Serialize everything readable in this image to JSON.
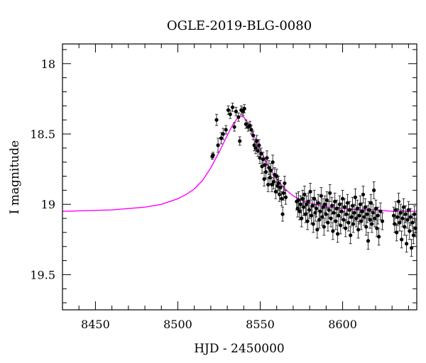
{
  "chart_data": {
    "type": "scatter",
    "title": "OGLE-2019-BLG-0080",
    "xlabel": "HJD - 2450000",
    "ylabel": "I magnitude",
    "xlim": [
      8430,
      8645
    ],
    "ylim": [
      19.75,
      17.86
    ],
    "y_inverted": true,
    "grid": false,
    "x_ticks": [
      8450,
      8500,
      8550,
      8600
    ],
    "x_tick_labels": [
      "8450",
      "8500",
      "8550",
      "8600"
    ],
    "y_ticks": [
      18,
      18.5,
      19,
      19.5
    ],
    "y_tick_labels": [
      "18",
      "18.5",
      "19",
      "19.5"
    ],
    "colors": {
      "data": "#000000",
      "model": "#ff00ff"
    },
    "series": [
      {
        "type": "scatter_errorbars",
        "points": [
          [
            8520.9,
            18.66,
            0.02
          ],
          [
            8521.4,
            18.65,
            0.02
          ],
          [
            8523.5,
            18.4,
            0.04
          ],
          [
            8524.4,
            18.58,
            0.05
          ],
          [
            8526.3,
            18.53,
            0.04
          ],
          [
            8527.5,
            18.5,
            0.04
          ],
          [
            8529.2,
            18.47,
            0.03
          ],
          [
            8530.6,
            18.33,
            0.03
          ],
          [
            8531.8,
            18.36,
            0.03
          ],
          [
            8533.2,
            18.31,
            0.03
          ],
          [
            8534.3,
            18.45,
            0.03
          ],
          [
            8535.3,
            18.34,
            0.03
          ],
          [
            8536.8,
            18.38,
            0.03
          ],
          [
            8537.6,
            18.55,
            0.03
          ],
          [
            8538.5,
            18.33,
            0.03
          ],
          [
            8539.6,
            18.34,
            0.03
          ],
          [
            8540.4,
            18.32,
            0.03
          ],
          [
            8541.3,
            18.43,
            0.03
          ],
          [
            8542.7,
            18.45,
            0.03
          ],
          [
            8543.8,
            18.44,
            0.03
          ],
          [
            8544.6,
            18.47,
            0.03
          ],
          [
            8545.7,
            18.51,
            0.03
          ],
          [
            8546.4,
            18.58,
            0.04
          ],
          [
            8547.2,
            18.6,
            0.04
          ],
          [
            8547.9,
            18.55,
            0.04
          ],
          [
            8548.6,
            18.62,
            0.04
          ],
          [
            8549.3,
            18.58,
            0.04
          ],
          [
            8549.8,
            18.67,
            0.04
          ],
          [
            8550.5,
            18.64,
            0.04
          ],
          [
            8551.1,
            18.73,
            0.05
          ],
          [
            8551.7,
            18.68,
            0.05
          ],
          [
            8552.4,
            18.82,
            0.05
          ],
          [
            8552.9,
            18.72,
            0.05
          ],
          [
            8553.5,
            18.77,
            0.05
          ],
          [
            8554.1,
            18.67,
            0.05
          ],
          [
            8554.8,
            18.86,
            0.05
          ],
          [
            8555.3,
            18.74,
            0.05
          ],
          [
            8555.9,
            18.81,
            0.05
          ],
          [
            8556.5,
            18.76,
            0.05
          ],
          [
            8557.1,
            18.86,
            0.05
          ],
          [
            8557.6,
            18.7,
            0.05
          ],
          [
            8558.2,
            18.84,
            0.05
          ],
          [
            8558.8,
            18.79,
            0.05
          ],
          [
            8559.4,
            18.91,
            0.05
          ],
          [
            8560.0,
            18.8,
            0.05
          ],
          [
            8560.6,
            18.87,
            0.05
          ],
          [
            8561.1,
            18.85,
            0.05
          ],
          [
            8561.7,
            18.93,
            0.05
          ],
          [
            8562.3,
            18.88,
            0.05
          ],
          [
            8563.0,
            18.96,
            0.05
          ],
          [
            8563.6,
            19.07,
            0.05
          ],
          [
            8564.2,
            18.92,
            0.05
          ],
          [
            8564.8,
            18.85,
            0.05
          ],
          [
            8565.5,
            18.95,
            0.05
          ],
          [
            8572.1,
            18.98,
            0.06
          ],
          [
            8572.7,
            19.03,
            0.06
          ],
          [
            8573.3,
            18.97,
            0.06
          ],
          [
            8573.9,
            19.05,
            0.06
          ],
          [
            8574.5,
            19.0,
            0.06
          ],
          [
            8575.1,
            19.1,
            0.06
          ],
          [
            8575.7,
            18.96,
            0.06
          ],
          [
            8576.3,
            19.02,
            0.06
          ],
          [
            8576.9,
            18.93,
            0.06
          ],
          [
            8577.5,
            19.07,
            0.06
          ],
          [
            8578.1,
            19.0,
            0.06
          ],
          [
            8578.7,
            19.12,
            0.06
          ],
          [
            8579.2,
            18.98,
            0.06
          ],
          [
            8579.8,
            19.04,
            0.06
          ],
          [
            8580.4,
            18.91,
            0.06
          ],
          [
            8581.0,
            19.08,
            0.06
          ],
          [
            8581.6,
            19.01,
            0.06
          ],
          [
            8582.2,
            19.14,
            0.06
          ],
          [
            8582.8,
            18.96,
            0.06
          ],
          [
            8583.4,
            19.06,
            0.06
          ],
          [
            8584.0,
            19.03,
            0.06
          ],
          [
            8584.6,
            19.18,
            0.06
          ],
          [
            8585.2,
            18.99,
            0.06
          ],
          [
            8585.8,
            19.11,
            0.06
          ],
          [
            8586.4,
            19.05,
            0.06
          ],
          [
            8587.0,
            18.94,
            0.06
          ],
          [
            8587.6,
            19.09,
            0.06
          ],
          [
            8588.1,
            19.02,
            0.06
          ],
          [
            8588.7,
            19.16,
            0.06
          ],
          [
            8589.3,
            19.0,
            0.06
          ],
          [
            8589.9,
            19.07,
            0.06
          ],
          [
            8590.5,
            18.97,
            0.06
          ],
          [
            8591.1,
            19.13,
            0.06
          ],
          [
            8591.7,
            19.04,
            0.06
          ],
          [
            8592.3,
            18.92,
            0.06
          ],
          [
            8592.9,
            19.1,
            0.06
          ],
          [
            8593.5,
            19.01,
            0.06
          ],
          [
            8594.1,
            19.19,
            0.06
          ],
          [
            8594.7,
            19.06,
            0.06
          ],
          [
            8595.3,
            18.98,
            0.06
          ],
          [
            8595.9,
            19.12,
            0.06
          ],
          [
            8596.5,
            19.03,
            0.06
          ],
          [
            8597.0,
            19.21,
            0.06
          ],
          [
            8597.6,
            19.08,
            0.06
          ],
          [
            8598.2,
            19.0,
            0.06
          ],
          [
            8598.8,
            19.15,
            0.06
          ],
          [
            8599.4,
            19.05,
            0.06
          ],
          [
            8600.0,
            18.96,
            0.06
          ],
          [
            8600.6,
            19.11,
            0.06
          ],
          [
            8601.2,
            19.02,
            0.06
          ],
          [
            8601.8,
            19.17,
            0.06
          ],
          [
            8602.4,
            19.07,
            0.06
          ],
          [
            8603.0,
            18.99,
            0.06
          ],
          [
            8603.6,
            19.13,
            0.06
          ],
          [
            8604.2,
            19.04,
            0.06
          ],
          [
            8604.8,
            19.22,
            0.06
          ],
          [
            8605.4,
            19.09,
            0.06
          ],
          [
            8606.0,
            19.01,
            0.06
          ],
          [
            8606.5,
            19.14,
            0.06
          ],
          [
            8607.1,
            19.06,
            0.06
          ],
          [
            8607.7,
            18.95,
            0.06
          ],
          [
            8608.3,
            19.1,
            0.06
          ],
          [
            8608.9,
            19.03,
            0.06
          ],
          [
            8609.5,
            19.18,
            0.06
          ],
          [
            8610.1,
            19.08,
            0.06
          ],
          [
            8610.7,
            19.0,
            0.06
          ],
          [
            8611.3,
            19.12,
            0.06
          ],
          [
            8611.9,
            19.05,
            0.06
          ],
          [
            8612.5,
            18.93,
            0.06
          ],
          [
            8613.1,
            19.09,
            0.06
          ],
          [
            8613.7,
            19.02,
            0.06
          ],
          [
            8614.3,
            19.16,
            0.06
          ],
          [
            8614.9,
            19.07,
            0.06
          ],
          [
            8615.5,
            19.26,
            0.06
          ],
          [
            8616.0,
            19.04,
            0.06
          ],
          [
            8616.6,
            19.11,
            0.06
          ],
          [
            8617.2,
            18.99,
            0.06
          ],
          [
            8617.8,
            19.14,
            0.06
          ],
          [
            8618.4,
            19.06,
            0.06
          ],
          [
            8619.0,
            18.9,
            0.06
          ],
          [
            8619.6,
            19.1,
            0.06
          ],
          [
            8620.2,
            19.03,
            0.06
          ],
          [
            8620.8,
            19.17,
            0.06
          ],
          [
            8621.4,
            19.08,
            0.06
          ],
          [
            8622.0,
            19.23,
            0.06
          ],
          [
            8623.0,
            19.05,
            0.06
          ],
          [
            8624.1,
            19.12,
            0.06
          ],
          [
            8631.0,
            19.08,
            0.06
          ],
          [
            8631.6,
            19.14,
            0.06
          ],
          [
            8632.2,
            19.04,
            0.06
          ],
          [
            8632.8,
            19.2,
            0.06
          ],
          [
            8633.4,
            19.09,
            0.06
          ],
          [
            8634.0,
            18.98,
            0.06
          ],
          [
            8634.6,
            19.13,
            0.06
          ],
          [
            8635.2,
            19.06,
            0.06
          ],
          [
            8635.8,
            19.25,
            0.06
          ],
          [
            8636.4,
            19.1,
            0.06
          ],
          [
            8637.0,
            19.02,
            0.06
          ],
          [
            8637.6,
            19.16,
            0.06
          ],
          [
            8638.2,
            19.07,
            0.06
          ],
          [
            8638.8,
            19.28,
            0.06
          ],
          [
            8639.4,
            19.11,
            0.06
          ],
          [
            8640.0,
            19.04,
            0.06
          ],
          [
            8640.6,
            19.19,
            0.06
          ],
          [
            8641.2,
            19.09,
            0.06
          ],
          [
            8641.8,
            19.31,
            0.06
          ],
          [
            8642.4,
            19.13,
            0.06
          ],
          [
            8643.0,
            19.22,
            0.06
          ],
          [
            8643.6,
            19.07,
            0.06
          ],
          [
            8644.2,
            19.17,
            0.06
          ]
        ]
      },
      {
        "type": "line",
        "x": [
          8430,
          8460,
          8480,
          8490,
          8500,
          8505,
          8510,
          8515,
          8520,
          8525,
          8530,
          8533,
          8536,
          8538,
          8540,
          8542,
          8545,
          8550,
          8555,
          8560,
          8565,
          8570,
          8575,
          8580,
          8590,
          8600,
          8610,
          8620,
          8630,
          8645
        ],
        "y": [
          19.05,
          19.04,
          19.02,
          19.0,
          18.96,
          18.93,
          18.89,
          18.83,
          18.74,
          18.63,
          18.51,
          18.44,
          18.39,
          18.37,
          18.38,
          18.41,
          18.48,
          18.61,
          18.73,
          18.82,
          18.89,
          18.94,
          18.97,
          18.99,
          19.02,
          19.03,
          19.04,
          19.04,
          19.05,
          19.05
        ]
      }
    ]
  }
}
